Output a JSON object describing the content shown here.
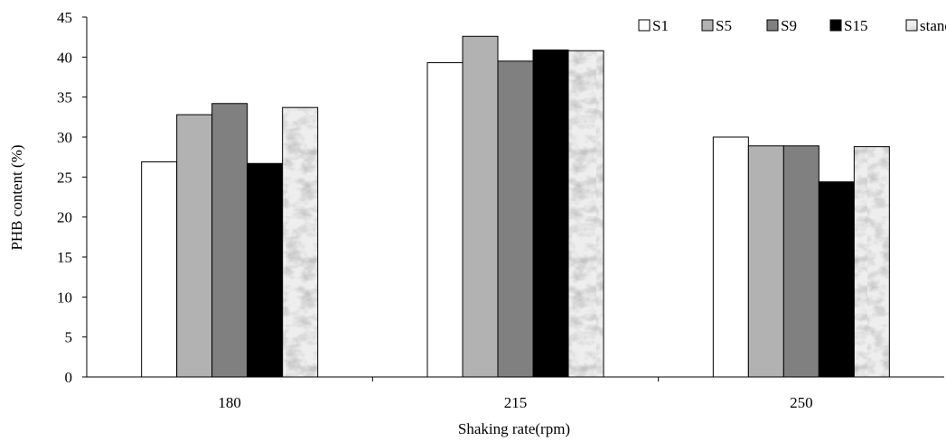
{
  "chart_data": {
    "type": "bar",
    "title": "",
    "xlabel": "Shaking rate(rpm)",
    "ylabel": "PHB content (%)",
    "ylim": [
      0,
      45
    ],
    "yticks": [
      0,
      5,
      10,
      15,
      20,
      25,
      30,
      35,
      40,
      45
    ],
    "categories": [
      "180",
      "215",
      "250"
    ],
    "series": [
      {
        "name": "S1",
        "values": [
          26.9,
          39.3,
          30.0
        ],
        "color": "#ffffff",
        "pattern": "none"
      },
      {
        "name": "S5",
        "values": [
          32.8,
          42.6,
          28.9
        ],
        "color": "#b2b2b2",
        "pattern": "none"
      },
      {
        "name": "S9",
        "values": [
          34.2,
          39.5,
          28.9
        ],
        "color": "#808080",
        "pattern": "none"
      },
      {
        "name": "S15",
        "values": [
          26.7,
          40.9,
          24.4
        ],
        "color": "#000000",
        "pattern": "none"
      },
      {
        "name": "standard",
        "values": [
          33.7,
          40.8,
          28.8
        ],
        "color": "#e9e9e9",
        "pattern": "marble"
      }
    ],
    "legend_position": "top-right",
    "grid": false
  }
}
